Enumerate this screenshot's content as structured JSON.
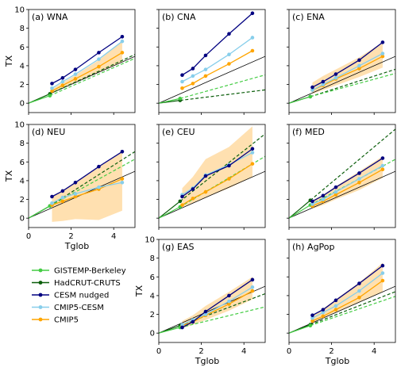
{
  "figure": {
    "xlabel": "Tglob",
    "ylabel": "TX"
  },
  "legend": [
    {
      "name": "GISTEMP-Berkeley",
      "color": "#44cc44",
      "style": "solid"
    },
    {
      "name": "HadCRUT-CRUTS",
      "color": "#0b5e0b",
      "style": "solid"
    },
    {
      "name": "CESM nudged",
      "color": "#000080",
      "style": "solid"
    },
    {
      "name": "CMIP5-CESM",
      "color": "#87ceeb",
      "style": "solid"
    },
    {
      "name": "CMIP5",
      "color": "#ffa500",
      "style": "solid"
    }
  ],
  "colors": {
    "gistemp": "#44cc44",
    "hadcrut": "#0b5e0b",
    "cesm": "#000080",
    "cmip5cesm": "#87ceeb",
    "cmip5": "#ffa500",
    "band": "#ffe0b0",
    "oneone": "#000000"
  },
  "chart_data": [
    {
      "type": "line",
      "title": "(a) WNA",
      "xlim": [
        0,
        5
      ],
      "ylim": [
        -1,
        10
      ],
      "xticks": [
        0,
        2,
        4
      ],
      "yticks": [
        0,
        2,
        4,
        6,
        8,
        10
      ],
      "show_xticklabels": false,
      "show_yticklabels": true,
      "show_xlabel": false,
      "show_ylabel": true,
      "gistemp": {
        "x": [
          1.0
        ],
        "y": [
          0.8
        ],
        "slope": 1.0
      },
      "hadcrut": {
        "x": [
          1.0
        ],
        "y": [
          1.0
        ],
        "slope": 1.05
      },
      "cesm": {
        "x": [
          1.1,
          1.6,
          2.2,
          3.3,
          4.4
        ],
        "y": [
          2.1,
          2.7,
          3.6,
          5.4,
          7.1
        ]
      },
      "cmip5cesm": {
        "x": [
          1.1,
          1.6,
          2.2,
          3.3,
          4.4
        ],
        "y": [
          1.6,
          2.3,
          3.1,
          4.7,
          6.6
        ]
      },
      "cmip5": {
        "x": [
          1.1,
          1.6,
          2.2,
          3.3,
          4.4
        ],
        "y": [
          1.3,
          1.9,
          2.6,
          3.9,
          5.4
        ]
      },
      "band": {
        "x": [
          1.1,
          1.6,
          2.2,
          3.3,
          4.4
        ],
        "lo": [
          1.1,
          1.6,
          2.2,
          3.3,
          4.4
        ],
        "hi": [
          1.5,
          2.2,
          3.0,
          4.6,
          6.6
        ]
      }
    },
    {
      "type": "line",
      "title": "(b) CNA",
      "xlim": [
        0,
        5
      ],
      "ylim": [
        -1,
        10
      ],
      "xticks": [
        0,
        2,
        4
      ],
      "yticks": [
        0,
        2,
        4,
        6,
        8,
        10
      ],
      "show_xticklabels": false,
      "show_yticklabels": false,
      "show_xlabel": false,
      "show_ylabel": false,
      "gistemp": {
        "x": [
          1.0
        ],
        "y": [
          0.5
        ],
        "slope": 0.63
      },
      "hadcrut": {
        "x": [
          1.0
        ],
        "y": [
          0.3
        ],
        "slope": 0.28
      },
      "cesm": {
        "x": [
          1.1,
          1.6,
          2.2,
          3.3,
          4.4
        ],
        "y": [
          3.0,
          3.7,
          5.1,
          7.4,
          9.6
        ]
      },
      "cmip5cesm": {
        "x": [
          1.1,
          1.6,
          2.2,
          3.3,
          4.4
        ],
        "y": [
          2.3,
          2.9,
          3.6,
          5.2,
          7.0
        ]
      },
      "cmip5": {
        "x": [
          1.1,
          1.6,
          2.2,
          3.3,
          4.4
        ],
        "y": [
          1.6,
          2.1,
          2.9,
          4.2,
          5.6
        ]
      },
      "band": null
    },
    {
      "type": "line",
      "title": "(c) ENA",
      "xlim": [
        0,
        5
      ],
      "ylim": [
        -1,
        10
      ],
      "xticks": [
        0,
        2,
        4
      ],
      "yticks": [
        0,
        2,
        4,
        6,
        8,
        10
      ],
      "show_xticklabels": false,
      "show_yticklabels": false,
      "show_xlabel": false,
      "show_ylabel": false,
      "gistemp": {
        "x": [
          1.0
        ],
        "y": [
          0.7
        ],
        "slope": 0.62
      },
      "hadcrut": {
        "x": [
          1.0
        ],
        "y": [
          0.7
        ],
        "slope": 0.73
      },
      "cesm": {
        "x": [
          1.1,
          1.6,
          2.2,
          3.3,
          4.4
        ],
        "y": [
          1.7,
          2.3,
          3.1,
          4.6,
          6.5
        ]
      },
      "cmip5cesm": {
        "x": [
          1.1,
          1.6,
          2.2,
          3.3,
          4.4
        ],
        "y": [
          1.4,
          2.0,
          2.7,
          4.0,
          5.3
        ]
      },
      "cmip5": {
        "x": [
          1.1,
          1.6,
          2.2,
          3.3,
          4.4
        ],
        "y": [
          1.4,
          1.9,
          2.6,
          3.7,
          5.0
        ]
      },
      "band": {
        "x": [
          1.1,
          1.6,
          2.2,
          3.3,
          4.4
        ],
        "lo": [
          1.0,
          1.4,
          1.9,
          2.8,
          3.8
        ],
        "hi": [
          2.2,
          2.9,
          3.6,
          4.9,
          6.5
        ]
      }
    },
    {
      "type": "line",
      "title": "(d) NEU",
      "xlim": [
        0,
        5
      ],
      "ylim": [
        -1,
        10
      ],
      "xticks": [
        0,
        2,
        4
      ],
      "yticks": [
        0,
        2,
        4,
        6,
        8,
        10
      ],
      "show_xticklabels": true,
      "show_yticklabels": true,
      "show_xlabel": true,
      "show_ylabel": true,
      "gistemp": {
        "x": [
          1.0
        ],
        "y": [
          1.3
        ],
        "slope": 1.25
      },
      "hadcrut": {
        "x": [
          1.0
        ],
        "y": [
          1.3
        ],
        "slope": 1.45
      },
      "cesm": {
        "x": [
          1.1,
          1.6,
          2.2,
          3.3,
          4.4
        ],
        "y": [
          2.3,
          2.9,
          3.8,
          5.5,
          7.1
        ]
      },
      "cmip5cesm": {
        "x": [
          1.1,
          1.6,
          2.2,
          3.3,
          4.4
        ],
        "y": [
          1.6,
          2.2,
          2.6,
          3.3,
          3.8
        ]
      },
      "cmip5": {
        "x": [
          1.1,
          1.6,
          2.2,
          3.3,
          4.4
        ],
        "y": [
          1.4,
          1.8,
          2.3,
          3.1,
          4.2
        ]
      },
      "band": {
        "x": [
          1.1,
          1.6,
          2.2,
          3.3,
          4.4
        ],
        "lo": [
          -0.4,
          -0.3,
          -0.1,
          -0.2,
          0.8
        ],
        "hi": [
          2.3,
          2.9,
          3.8,
          5.5,
          7.1
        ]
      }
    },
    {
      "type": "line",
      "title": "(e) CEU",
      "xlim": [
        0,
        5
      ],
      "ylim": [
        -1,
        10
      ],
      "xticks": [
        0,
        2,
        4
      ],
      "yticks": [
        0,
        2,
        4,
        6,
        8,
        10
      ],
      "show_xticklabels": false,
      "show_yticklabels": false,
      "show_xlabel": false,
      "show_ylabel": false,
      "gistemp": {
        "x": [
          1.0
        ],
        "y": [
          1.2
        ],
        "slope": 1.35
      },
      "hadcrut": {
        "x": [
          1.0
        ],
        "y": [
          1.8
        ],
        "slope": 1.8
      },
      "cesm": {
        "x": [
          1.1,
          1.6,
          2.2,
          3.3,
          4.4
        ],
        "y": [
          2.3,
          3.1,
          4.5,
          5.6,
          7.4
        ]
      },
      "cmip5cesm": {
        "x": [
          1.1,
          1.6,
          2.2,
          3.3,
          4.4
        ],
        "y": [
          2.5,
          3.2,
          4.6,
          5.7,
          7.0
        ]
      },
      "cmip5": {
        "x": [
          1.1,
          1.6,
          2.2,
          3.3,
          4.4
        ],
        "y": [
          1.4,
          2.1,
          2.8,
          4.2,
          5.8
        ]
      },
      "band": {
        "x": [
          1.1,
          1.6,
          2.2,
          3.3,
          4.4
        ],
        "lo": [
          1.2,
          1.6,
          2.2,
          3.2,
          4.4
        ],
        "hi": [
          3.2,
          4.4,
          6.3,
          7.6,
          9.8
        ]
      }
    },
    {
      "type": "line",
      "title": "(f) MED",
      "xlim": [
        0,
        5
      ],
      "ylim": [
        -1,
        10
      ],
      "xticks": [
        0,
        2,
        4
      ],
      "yticks": [
        0,
        2,
        4,
        6,
        8,
        10
      ],
      "show_xticklabels": false,
      "show_yticklabels": false,
      "show_xlabel": false,
      "show_ylabel": false,
      "gistemp": {
        "x": [
          1.0
        ],
        "y": [
          1.4
        ],
        "slope": 1.22
      },
      "hadcrut": {
        "x": [
          1.0
        ],
        "y": [
          1.9
        ],
        "slope": 1.9
      },
      "cesm": {
        "x": [
          1.1,
          1.6,
          2.2,
          3.3,
          4.4
        ],
        "y": [
          1.8,
          2.4,
          3.3,
          4.8,
          6.4
        ]
      },
      "cmip5cesm": {
        "x": [
          1.1,
          1.6,
          2.2,
          3.3,
          4.4
        ],
        "y": [
          1.5,
          2.0,
          2.8,
          4.2,
          5.6
        ]
      },
      "cmip5": {
        "x": [
          1.1,
          1.6,
          2.2,
          3.3,
          4.4
        ],
        "y": [
          1.3,
          1.8,
          2.5,
          3.8,
          5.2
        ]
      },
      "band": {
        "x": [
          1.1,
          1.6,
          2.2,
          3.3,
          4.4
        ],
        "lo": [
          1.0,
          1.4,
          2.0,
          3.0,
          4.3
        ],
        "hi": [
          1.9,
          2.5,
          3.4,
          5.0,
          6.6
        ]
      }
    },
    {
      "type": "line",
      "title": "(g) EAS",
      "xlim": [
        0,
        5
      ],
      "ylim": [
        -1,
        10
      ],
      "xticks": [
        0,
        2,
        4
      ],
      "yticks": [
        0,
        2,
        4,
        6,
        8,
        10
      ],
      "show_xticklabels": true,
      "show_yticklabels": true,
      "show_xlabel": true,
      "show_ylabel": true,
      "gistemp": {
        "x": [
          1.0
        ],
        "y": [
          0.6
        ],
        "slope": 0.55
      },
      "hadcrut": {
        "x": [
          1.0
        ],
        "y": [
          0.8
        ],
        "slope": 0.85
      },
      "cesm": {
        "x": [
          1.1,
          1.6,
          2.2,
          3.3,
          4.4
        ],
        "y": [
          0.6,
          1.2,
          2.3,
          4.0,
          5.7
        ]
      },
      "cmip5cesm": {
        "x": [
          1.1,
          1.6,
          2.2,
          3.3,
          4.4
        ],
        "y": [
          0.9,
          1.4,
          2.0,
          3.4,
          4.9
        ]
      },
      "cmip5": {
        "x": [
          1.1,
          1.6,
          2.2,
          3.3,
          4.4
        ],
        "y": [
          0.8,
          1.2,
          1.9,
          3.1,
          4.5
        ]
      },
      "band": {
        "x": [
          1.1,
          1.6,
          2.2,
          3.3,
          4.4
        ],
        "lo": [
          0.5,
          0.9,
          1.4,
          2.4,
          3.6
        ],
        "hi": [
          1.3,
          1.9,
          2.9,
          4.4,
          6.0
        ]
      }
    },
    {
      "type": "line",
      "title": "(h) AgPop",
      "xlim": [
        0,
        5
      ],
      "ylim": [
        -1,
        10
      ],
      "xticks": [
        0,
        2,
        4
      ],
      "yticks": [
        0,
        2,
        4,
        6,
        8,
        10
      ],
      "show_xticklabels": true,
      "show_yticklabels": false,
      "show_xlabel": true,
      "show_ylabel": false,
      "gistemp": {
        "x": [
          1.0
        ],
        "y": [
          0.8
        ],
        "slope": 0.78
      },
      "hadcrut": {
        "x": [
          1.0
        ],
        "y": [
          0.9
        ],
        "slope": 0.88
      },
      "cesm": {
        "x": [
          1.1,
          1.6,
          2.2,
          3.3,
          4.4
        ],
        "y": [
          1.9,
          2.5,
          3.5,
          5.3,
          7.2
        ]
      },
      "cmip5cesm": {
        "x": [
          1.1,
          1.6,
          2.2,
          3.3,
          4.4
        ],
        "y": [
          1.6,
          2.2,
          2.9,
          4.5,
          6.4
        ]
      },
      "cmip5": {
        "x": [
          1.1,
          1.6,
          2.2,
          3.3,
          4.4
        ],
        "y": [
          1.3,
          1.8,
          2.5,
          3.8,
          5.6
        ]
      },
      "band": {
        "x": [
          1.1,
          1.6,
          2.2,
          3.3,
          4.4
        ],
        "lo": [
          1.1,
          1.6,
          2.2,
          3.3,
          4.4
        ],
        "hi": [
          1.9,
          2.6,
          3.6,
          5.4,
          7.5
        ]
      }
    }
  ]
}
